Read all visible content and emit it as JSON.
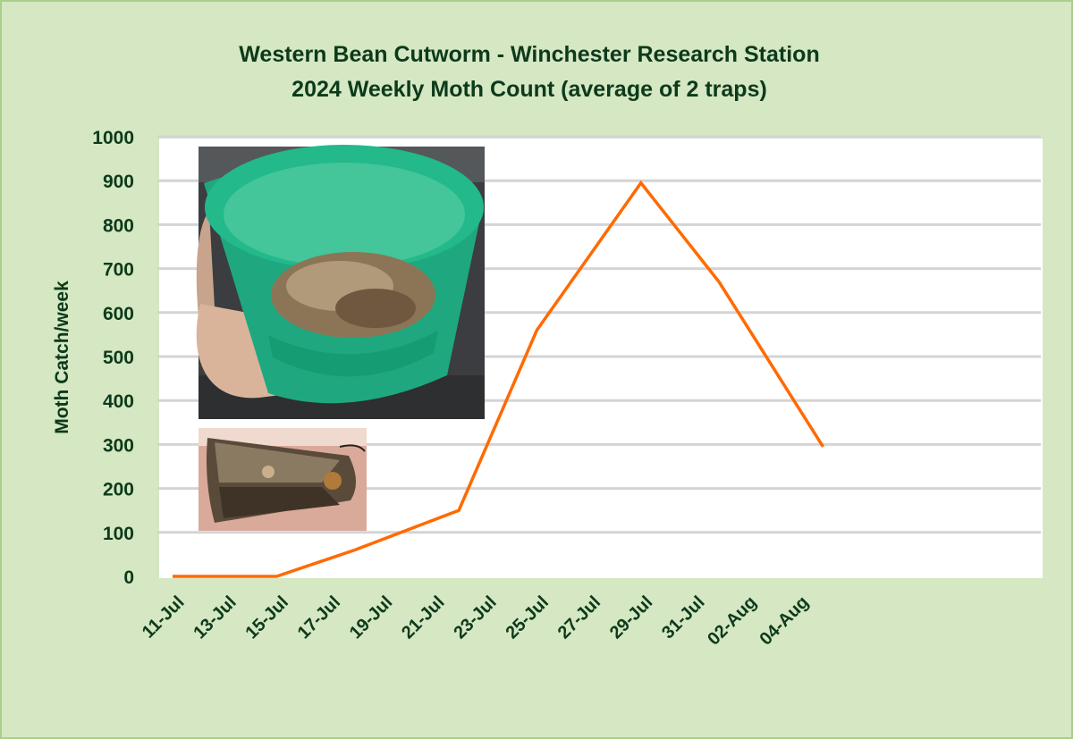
{
  "chart_data": {
    "type": "line",
    "title": "Western Bean Cutworm - Winchester Research Station",
    "subtitle": "2024 Weekly Moth Count (average of 2 traps)",
    "ylabel": "Moth Catch/week",
    "xlabel": "",
    "x_tick_labels": [
      "11-Jul",
      "13-Jul",
      "15-Jul",
      "17-Jul",
      "19-Jul",
      "21-Jul",
      "23-Jul",
      "25-Jul",
      "27-Jul",
      "29-Jul",
      "31-Jul",
      "02-Aug",
      "04-Aug"
    ],
    "y_tick_labels": [
      "0",
      "100",
      "200",
      "300",
      "400",
      "500",
      "600",
      "700",
      "800",
      "900",
      "1000"
    ],
    "ylim": [
      0,
      1000
    ],
    "grid": true,
    "line_color": "#ff6a00",
    "series": [
      {
        "x": [
          "11-Jul",
          "15-Jul",
          "18-Jul",
          "22-Jul",
          "25-Jul",
          "29-Jul",
          "01-Aug",
          "05-Aug"
        ],
        "values": [
          0,
          0,
          60,
          150,
          560,
          895,
          670,
          295
        ]
      }
    ],
    "images": [
      {
        "name": "moth-trap-bucket-photo",
        "description": "green trap bucket full of moths"
      },
      {
        "name": "moth-specimen-photo",
        "description": "western bean cutworm moth"
      }
    ]
  }
}
